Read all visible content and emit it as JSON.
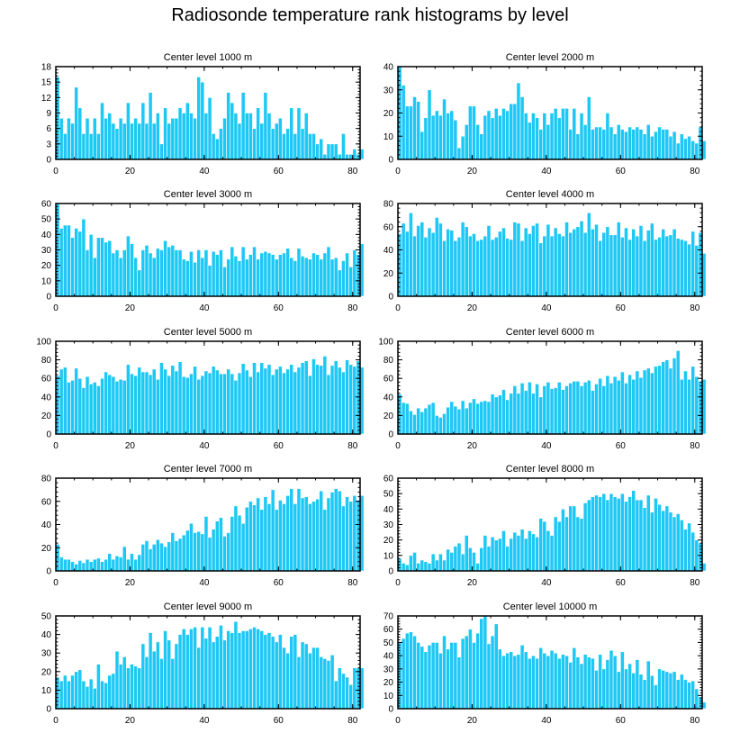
{
  "figure": {
    "title": "Radiosonde temperature rank histograms by level",
    "bar_color": "#1ec8f5",
    "bar_edge_color": "#ffffff"
  },
  "chart_data": [
    {
      "type": "bar",
      "title": "Center level 1000 m",
      "xlabel": "",
      "ylabel": "",
      "x_start": 0,
      "xlim": [
        0,
        82
      ],
      "ylim": [
        0,
        18
      ],
      "xticks": [
        0,
        20,
        40,
        60,
        80
      ],
      "yticks": [
        0,
        3,
        6,
        9,
        12,
        15,
        18
      ],
      "values": [
        16,
        8,
        5,
        8,
        7,
        14,
        10,
        5,
        8,
        5,
        8,
        5,
        11,
        8,
        9,
        7,
        6,
        8,
        7,
        11,
        7,
        8,
        7,
        11,
        7,
        13,
        7,
        9,
        3,
        10,
        7,
        8,
        8,
        10,
        9,
        11,
        9,
        8,
        16,
        15,
        9,
        12,
        5,
        4,
        6,
        8,
        13,
        11,
        9,
        7,
        13,
        9,
        9,
        6,
        10,
        7,
        13,
        9,
        6,
        7,
        8,
        5,
        6,
        10,
        5,
        10,
        6,
        9,
        5,
        5,
        3,
        4,
        1,
        3,
        3,
        3,
        1,
        5,
        1,
        1,
        2,
        1,
        2
      ]
    },
    {
      "type": "bar",
      "title": "Center level 2000 m",
      "xlabel": "",
      "ylabel": "",
      "x_start": 0,
      "xlim": [
        0,
        82
      ],
      "ylim": [
        0,
        40
      ],
      "xticks": [
        0,
        20,
        40,
        60,
        80
      ],
      "yticks": [
        0,
        10,
        20,
        30,
        40
      ],
      "values": [
        40,
        32,
        23,
        23,
        27,
        25,
        12,
        18,
        30,
        19,
        21,
        19,
        26,
        20,
        21,
        17,
        5,
        10,
        15,
        23,
        23,
        15,
        11,
        19,
        21,
        18,
        22,
        19,
        22,
        21,
        24,
        24,
        33,
        27,
        20,
        16,
        20,
        18,
        13,
        20,
        15,
        20,
        22,
        18,
        22,
        22,
        13,
        22,
        11,
        20,
        15,
        27,
        13,
        14,
        14,
        13,
        20,
        14,
        11,
        15,
        13,
        12,
        14,
        13,
        14,
        13,
        11,
        15,
        10,
        12,
        14,
        13,
        13,
        10,
        12,
        7,
        11,
        9,
        10,
        8,
        7,
        14,
        8
      ]
    },
    {
      "type": "bar",
      "title": "Center level 3000 m",
      "xlabel": "",
      "ylabel": "",
      "x_start": 0,
      "xlim": [
        0,
        82
      ],
      "ylim": [
        0,
        60
      ],
      "xticks": [
        0,
        20,
        40,
        60,
        80
      ],
      "yticks": [
        0,
        10,
        20,
        30,
        40,
        50,
        60
      ],
      "values": [
        60,
        44,
        46,
        46,
        38,
        44,
        42,
        50,
        30,
        40,
        25,
        38,
        38,
        35,
        36,
        28,
        30,
        25,
        30,
        39,
        34,
        25,
        17,
        30,
        33,
        28,
        25,
        31,
        30,
        36,
        32,
        33,
        30,
        30,
        24,
        23,
        29,
        22,
        30,
        25,
        30,
        20,
        29,
        27,
        30,
        19,
        24,
        32,
        26,
        23,
        32,
        24,
        27,
        32,
        24,
        28,
        29,
        28,
        27,
        24,
        27,
        28,
        31,
        25,
        23,
        31,
        26,
        25,
        24,
        28,
        27,
        24,
        28,
        32,
        24,
        25,
        17,
        23,
        28,
        19,
        30,
        27,
        34
      ]
    },
    {
      "type": "bar",
      "title": "Center level 4000 m",
      "xlabel": "",
      "ylabel": "",
      "x_start": 0,
      "xlim": [
        0,
        82
      ],
      "ylim": [
        0,
        80
      ],
      "xticks": [
        0,
        20,
        40,
        60,
        80
      ],
      "yticks": [
        0,
        20,
        40,
        60,
        80
      ],
      "values": [
        54,
        63,
        56,
        72,
        52,
        61,
        64,
        51,
        59,
        55,
        68,
        63,
        48,
        58,
        57,
        48,
        51,
        64,
        60,
        52,
        54,
        48,
        49,
        52,
        61,
        49,
        51,
        56,
        59,
        50,
        49,
        64,
        63,
        48,
        59,
        54,
        61,
        63,
        46,
        52,
        62,
        52,
        59,
        54,
        52,
        64,
        55,
        58,
        60,
        65,
        55,
        72,
        58,
        62,
        48,
        55,
        60,
        53,
        53,
        64,
        51,
        59,
        49,
        58,
        52,
        61,
        48,
        57,
        63,
        49,
        51,
        58,
        52,
        53,
        58,
        50,
        49,
        48,
        45,
        56,
        44,
        55,
        37
      ]
    },
    {
      "type": "bar",
      "title": "Center level 5000 m",
      "xlabel": "",
      "ylabel": "",
      "x_start": 0,
      "xlim": [
        0,
        82
      ],
      "ylim": [
        0,
        100
      ],
      "xticks": [
        0,
        20,
        40,
        60,
        80
      ],
      "yticks": [
        0,
        20,
        40,
        60,
        80,
        100
      ],
      "values": [
        63,
        70,
        72,
        56,
        58,
        71,
        60,
        50,
        62,
        54,
        56,
        52,
        60,
        67,
        64,
        62,
        57,
        59,
        58,
        75,
        65,
        63,
        72,
        67,
        67,
        64,
        70,
        59,
        77,
        70,
        63,
        74,
        68,
        78,
        62,
        61,
        65,
        73,
        59,
        63,
        68,
        66,
        73,
        69,
        65,
        65,
        70,
        65,
        58,
        66,
        76,
        69,
        62,
        77,
        67,
        77,
        71,
        75,
        64,
        70,
        73,
        66,
        70,
        75,
        67,
        72,
        77,
        79,
        63,
        81,
        75,
        74,
        84,
        64,
        74,
        79,
        72,
        67,
        80,
        75,
        73,
        79,
        72
      ]
    },
    {
      "type": "bar",
      "title": "Center level 6000 m",
      "xlabel": "",
      "ylabel": "",
      "x_start": 0,
      "xlim": [
        0,
        82
      ],
      "ylim": [
        0,
        100
      ],
      "xticks": [
        0,
        20,
        40,
        60,
        80
      ],
      "yticks": [
        0,
        20,
        40,
        60,
        80,
        100
      ],
      "values": [
        43,
        34,
        33,
        25,
        21,
        28,
        24,
        28,
        32,
        34,
        20,
        18,
        22,
        29,
        35,
        30,
        27,
        36,
        28,
        34,
        38,
        33,
        35,
        36,
        35,
        43,
        40,
        42,
        48,
        37,
        44,
        52,
        44,
        55,
        47,
        56,
        44,
        54,
        40,
        52,
        56,
        49,
        50,
        56,
        48,
        52,
        55,
        57,
        57,
        52,
        56,
        58,
        47,
        54,
        60,
        52,
        63,
        55,
        62,
        58,
        67,
        55,
        64,
        59,
        68,
        61,
        69,
        71,
        66,
        73,
        74,
        78,
        80,
        71,
        82,
        90,
        59,
        68,
        59,
        73,
        62,
        57,
        59
      ]
    },
    {
      "type": "bar",
      "title": "Center level 7000 m",
      "xlabel": "",
      "ylabel": "",
      "x_start": 0,
      "xlim": [
        0,
        82
      ],
      "ylim": [
        0,
        80
      ],
      "xticks": [
        0,
        20,
        40,
        60,
        80
      ],
      "yticks": [
        0,
        20,
        40,
        60,
        80
      ],
      "values": [
        23,
        12,
        10,
        10,
        8,
        6,
        9,
        7,
        10,
        8,
        10,
        11,
        8,
        10,
        15,
        10,
        13,
        12,
        21,
        10,
        15,
        10,
        14,
        23,
        26,
        19,
        23,
        27,
        24,
        21,
        25,
        33,
        26,
        28,
        31,
        35,
        41,
        33,
        34,
        32,
        47,
        29,
        36,
        43,
        46,
        30,
        33,
        47,
        56,
        48,
        41,
        55,
        60,
        57,
        63,
        53,
        64,
        58,
        70,
        53,
        61,
        58,
        65,
        71,
        58,
        71,
        63,
        64,
        58,
        60,
        62,
        69,
        53,
        63,
        68,
        71,
        69,
        56,
        64,
        60,
        65,
        61,
        65
      ]
    },
    {
      "type": "bar",
      "title": "Center level 8000 m",
      "xlabel": "",
      "ylabel": "",
      "x_start": 0,
      "xlim": [
        0,
        82
      ],
      "ylim": [
        0,
        60
      ],
      "xticks": [
        0,
        20,
        40,
        60,
        80
      ],
      "yticks": [
        0,
        10,
        20,
        30,
        40,
        50,
        60
      ],
      "values": [
        8,
        5,
        4,
        10,
        12,
        5,
        7,
        6,
        5,
        11,
        7,
        11,
        7,
        14,
        12,
        16,
        18,
        11,
        23,
        15,
        12,
        5,
        15,
        23,
        16,
        22,
        20,
        21,
        26,
        16,
        21,
        25,
        23,
        27,
        21,
        26,
        24,
        22,
        34,
        32,
        26,
        23,
        35,
        32,
        40,
        35,
        42,
        42,
        35,
        34,
        44,
        46,
        48,
        49,
        48,
        50,
        46,
        50,
        48,
        47,
        50,
        45,
        48,
        52,
        46,
        46,
        41,
        49,
        38,
        47,
        43,
        39,
        42,
        38,
        35,
        37,
        33,
        27,
        31,
        25,
        20,
        18,
        5
      ]
    },
    {
      "type": "bar",
      "title": "Center level 9000 m",
      "xlabel": "",
      "ylabel": "",
      "x_start": 0,
      "xlim": [
        0,
        82
      ],
      "ylim": [
        0,
        50
      ],
      "xticks": [
        0,
        20,
        40,
        60,
        80
      ],
      "yticks": [
        0,
        10,
        20,
        30,
        40,
        50
      ],
      "values": [
        17,
        15,
        18,
        15,
        18,
        20,
        21,
        15,
        12,
        16,
        11,
        24,
        15,
        14,
        18,
        19,
        31,
        24,
        28,
        22,
        24,
        23,
        22,
        35,
        28,
        41,
        31,
        36,
        27,
        42,
        37,
        27,
        35,
        40,
        43,
        40,
        43,
        44,
        33,
        44,
        38,
        44,
        36,
        39,
        45,
        37,
        42,
        41,
        47,
        41,
        42,
        42,
        43,
        44,
        43,
        42,
        40,
        41,
        39,
        36,
        40,
        33,
        30,
        39,
        40,
        28,
        36,
        35,
        30,
        33,
        33,
        28,
        27,
        26,
        29,
        15,
        22,
        19,
        17,
        13,
        22,
        22,
        22
      ]
    },
    {
      "type": "bar",
      "title": "Center level 10000 m",
      "xlabel": "",
      "ylabel": "",
      "x_start": 0,
      "xlim": [
        0,
        82
      ],
      "ylim": [
        0,
        70
      ],
      "xticks": [
        0,
        20,
        40,
        60,
        80
      ],
      "yticks": [
        0,
        10,
        20,
        30,
        40,
        50,
        60,
        70
      ],
      "values": [
        50,
        53,
        57,
        58,
        55,
        50,
        47,
        43,
        48,
        50,
        50,
        42,
        55,
        45,
        50,
        50,
        39,
        53,
        55,
        60,
        50,
        57,
        68,
        70,
        49,
        55,
        64,
        45,
        40,
        42,
        43,
        40,
        41,
        48,
        43,
        38,
        40,
        38,
        46,
        42,
        40,
        44,
        42,
        38,
        41,
        40,
        35,
        46,
        39,
        34,
        41,
        39,
        38,
        29,
        41,
        30,
        37,
        44,
        40,
        28,
        43,
        30,
        34,
        27,
        37,
        26,
        22,
        36,
        25,
        18,
        30,
        29,
        28,
        27,
        28,
        22,
        26,
        22,
        20,
        21,
        15,
        9,
        5
      ]
    }
  ]
}
